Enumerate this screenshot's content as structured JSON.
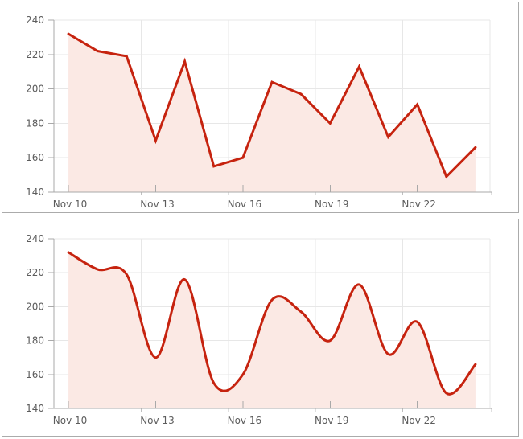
{
  "window": {
    "background": "#ffffff",
    "panel_border_color": "#ababab"
  },
  "chart_data": [
    {
      "type": "area",
      "line_style": "straight",
      "title": "",
      "x": [
        "Nov 10",
        "Nov 11",
        "Nov 12",
        "Nov 13",
        "Nov 14",
        "Nov 15",
        "Nov 16",
        "Nov 17",
        "Nov 18",
        "Nov 19",
        "Nov 20",
        "Nov 21",
        "Nov 22",
        "Nov 23",
        "Nov 24"
      ],
      "values": [
        232,
        222,
        219,
        170,
        216,
        155,
        160,
        204,
        197,
        180,
        213,
        172,
        191,
        149,
        166
      ],
      "x_tick_labels": [
        "Nov 10",
        "Nov 13",
        "Nov 16",
        "Nov 19",
        "Nov 22"
      ],
      "x_tick_indices": [
        0,
        3,
        6,
        9,
        12
      ],
      "y_ticks": [
        140,
        160,
        180,
        200,
        220,
        240
      ],
      "ylim": [
        140,
        240
      ],
      "grid": true,
      "legend": false,
      "line_color": "#c6230f",
      "fill_color": "#fbe9e4",
      "axis_color": "#a9a9a9",
      "grid_color": "#e7e7e7",
      "minor_tick_color": "#bfbfbf",
      "label_color": "#5c5c5c"
    },
    {
      "type": "area",
      "line_style": "smooth",
      "title": "",
      "x": [
        "Nov 10",
        "Nov 11",
        "Nov 12",
        "Nov 13",
        "Nov 14",
        "Nov 15",
        "Nov 16",
        "Nov 17",
        "Nov 18",
        "Nov 19",
        "Nov 20",
        "Nov 21",
        "Nov 22",
        "Nov 23",
        "Nov 24"
      ],
      "values": [
        232,
        222,
        219,
        170,
        216,
        155,
        160,
        204,
        197,
        180,
        213,
        172,
        191,
        149,
        166
      ],
      "x_tick_labels": [
        "Nov 10",
        "Nov 13",
        "Nov 16",
        "Nov 19",
        "Nov 22"
      ],
      "x_tick_indices": [
        0,
        3,
        6,
        9,
        12
      ],
      "y_ticks": [
        140,
        160,
        180,
        200,
        220,
        240
      ],
      "ylim": [
        140,
        240
      ],
      "grid": true,
      "legend": false,
      "line_color": "#c6230f",
      "fill_color": "#fbe9e4",
      "axis_color": "#a9a9a9",
      "grid_color": "#e7e7e7",
      "minor_tick_color": "#bfbfbf",
      "label_color": "#5c5c5c"
    }
  ]
}
